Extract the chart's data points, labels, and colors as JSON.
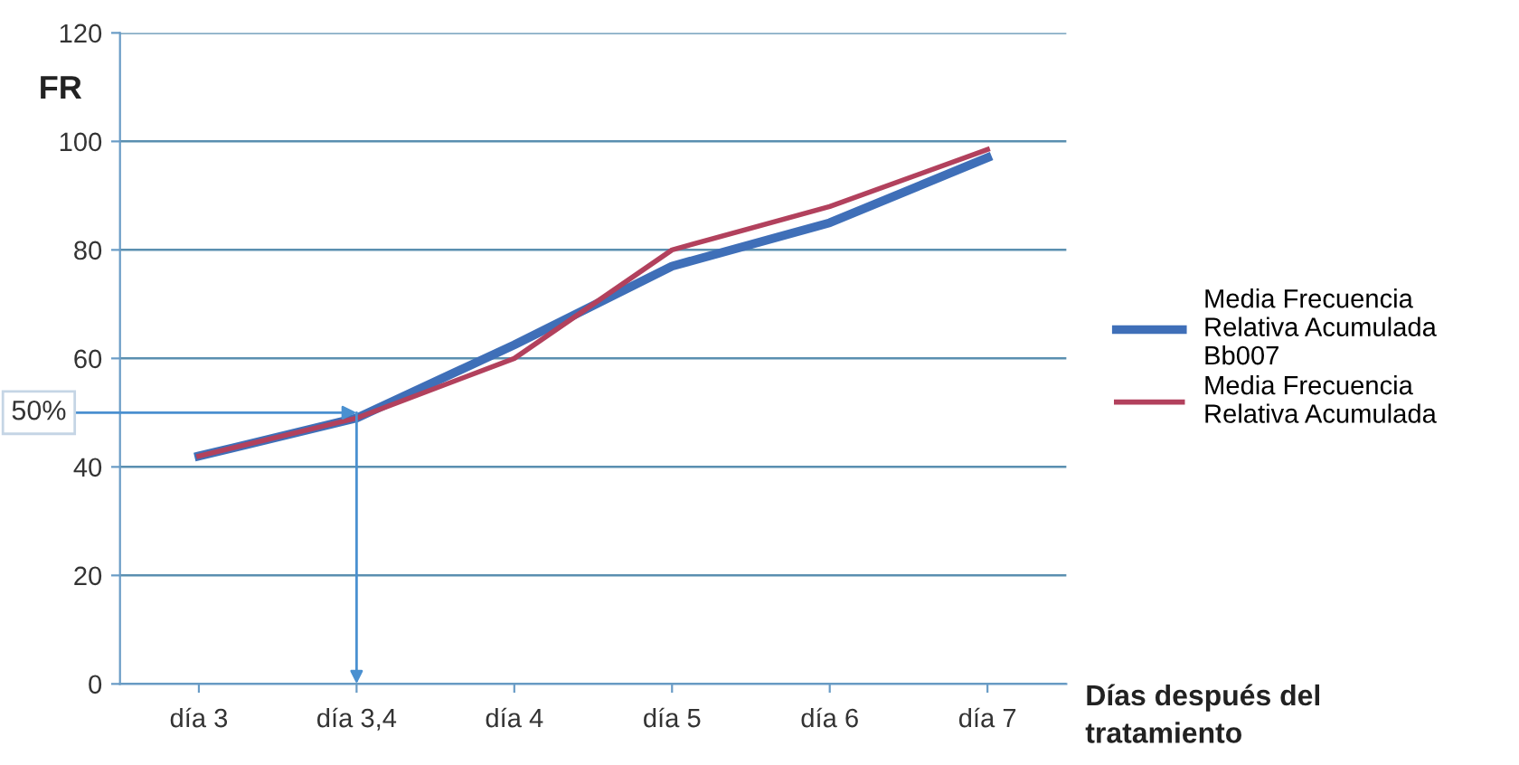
{
  "chart_data": {
    "type": "line",
    "ylabel": "FR",
    "xlabel": "Días después del tratamiento",
    "categories": [
      "día 3",
      "día 3,4",
      "día 4",
      "día 5",
      "día 6",
      "día 7"
    ],
    "series": [
      {
        "name": "Media Frecuencia Relativa Acumulada Bb007",
        "color": "#3f6fb8",
        "values": [
          42,
          49,
          62.5,
          77,
          85,
          97
        ]
      },
      {
        "name": "Media Frecuencia Relativa Acumulada",
        "color": "#b2415d",
        "values": [
          42,
          49,
          60,
          80,
          88,
          98.5
        ]
      }
    ],
    "ylim": [
      0,
      120
    ],
    "yticks": [
      0,
      20,
      40,
      60,
      80,
      100,
      120
    ],
    "grid": "y",
    "legend": "right",
    "marker": "none",
    "line_style": "solid",
    "annotations": [
      {
        "text": "50%",
        "x": "día 3,4",
        "y": 50
      }
    ]
  }
}
